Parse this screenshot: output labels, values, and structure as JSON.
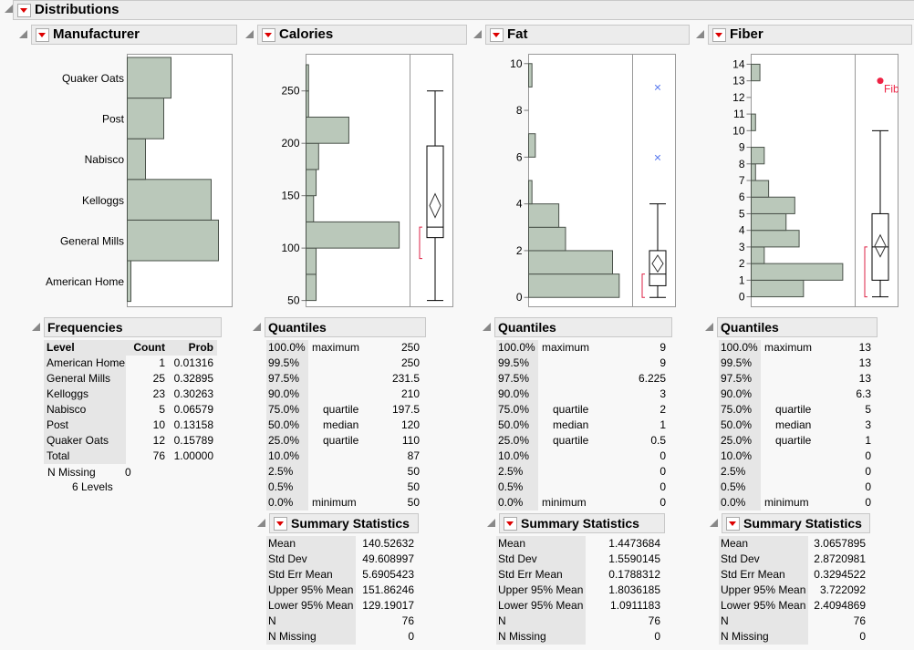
{
  "title": "Distributions",
  "colors": {
    "bar": "#bac8ba",
    "bar_stroke": "#4a524a",
    "outlier_fat": "#5577ee",
    "outlier_fiber": "#ee2244",
    "shortest_half": "#dd2244"
  },
  "manufacturer": {
    "title": "Manufacturer",
    "levels": [
      "American Home",
      "General Mills",
      "Kelloggs",
      "Nabisco",
      "Post",
      "Quaker Oats"
    ],
    "counts": [
      1,
      25,
      23,
      5,
      10,
      12
    ],
    "frequencies": {
      "title": "Frequencies",
      "headers": [
        "Level",
        "Count",
        "Prob"
      ],
      "rows": [
        [
          "American Home",
          "1",
          "0.01316"
        ],
        [
          "General Mills",
          "25",
          "0.32895"
        ],
        [
          "Kelloggs",
          "23",
          "0.30263"
        ],
        [
          "Nabisco",
          "5",
          "0.06579"
        ],
        [
          "Post",
          "10",
          "0.13158"
        ],
        [
          "Quaker Oats",
          "12",
          "0.15789"
        ],
        [
          "Total",
          "76",
          "1.00000"
        ]
      ],
      "n_missing_label": "N Missing",
      "n_missing": "0",
      "levels_text": "6  Levels"
    }
  },
  "vars": [
    {
      "title": "Calories",
      "ticks": [
        50,
        100,
        150,
        200,
        250
      ],
      "range": [
        44,
        285
      ],
      "bins": [
        [
          50,
          75,
          4
        ],
        [
          75,
          100,
          4
        ],
        [
          100,
          125,
          37
        ],
        [
          125,
          150,
          3
        ],
        [
          150,
          175,
          4
        ],
        [
          175,
          200,
          5
        ],
        [
          200,
          225,
          17
        ],
        [
          225,
          250,
          1
        ],
        [
          250,
          275,
          1
        ]
      ],
      "box": {
        "min": 50,
        "q1": 110,
        "median": 120,
        "q3": 197.5,
        "max": 250,
        "mean": 140.52632,
        "lcl": 129.19017,
        "ucl": 151.86246,
        "short_half": [
          90,
          120
        ],
        "outliers": []
      },
      "quantiles": [
        [
          "100.0%",
          "maximum",
          "250"
        ],
        [
          "99.5%",
          "",
          "250"
        ],
        [
          "97.5%",
          "",
          "231.5"
        ],
        [
          "90.0%",
          "",
          "210"
        ],
        [
          "75.0%",
          "quartile",
          "197.5"
        ],
        [
          "50.0%",
          "median",
          "120"
        ],
        [
          "25.0%",
          "quartile",
          "110"
        ],
        [
          "10.0%",
          "",
          "87"
        ],
        [
          "2.5%",
          "",
          "50"
        ],
        [
          "0.5%",
          "",
          "50"
        ],
        [
          "0.0%",
          "minimum",
          "50"
        ]
      ],
      "summary": [
        [
          "Mean",
          "140.52632"
        ],
        [
          "Std Dev",
          "49.608997"
        ],
        [
          "Std Err Mean",
          "5.6905423"
        ],
        [
          "Upper 95% Mean",
          "151.86246"
        ],
        [
          "Lower 95% Mean",
          "129.19017"
        ],
        [
          "N",
          "76"
        ],
        [
          "N Missing",
          "0"
        ]
      ]
    },
    {
      "title": "Fat",
      "ticks": [
        0,
        2,
        4,
        6,
        8,
        10
      ],
      "range": [
        -0.4,
        10.4
      ],
      "bins": [
        [
          0,
          1,
          27
        ],
        [
          1,
          2,
          25
        ],
        [
          2,
          3,
          11
        ],
        [
          3,
          4,
          9
        ],
        [
          4,
          5,
          1
        ],
        [
          5,
          6,
          0
        ],
        [
          6,
          7,
          2
        ],
        [
          7,
          8,
          0
        ],
        [
          8,
          9,
          0
        ],
        [
          9,
          10,
          1
        ]
      ],
      "box": {
        "min": 0,
        "q1": 0.5,
        "median": 1,
        "q3": 2,
        "max": 4,
        "mean": 1.4473684,
        "lcl": 1.0911183,
        "ucl": 1.8036185,
        "short_half": [
          0,
          1
        ],
        "outliers": [
          6,
          9
        ],
        "outlier_style": "x"
      },
      "quantiles": [
        [
          "100.0%",
          "maximum",
          "9"
        ],
        [
          "99.5%",
          "",
          "9"
        ],
        [
          "97.5%",
          "",
          "6.225"
        ],
        [
          "90.0%",
          "",
          "3"
        ],
        [
          "75.0%",
          "quartile",
          "2"
        ],
        [
          "50.0%",
          "median",
          "1"
        ],
        [
          "25.0%",
          "quartile",
          "0.5"
        ],
        [
          "10.0%",
          "",
          "0"
        ],
        [
          "2.5%",
          "",
          "0"
        ],
        [
          "0.5%",
          "",
          "0"
        ],
        [
          "0.0%",
          "minimum",
          "0"
        ]
      ],
      "summary": [
        [
          "Mean",
          "1.4473684"
        ],
        [
          "Std Dev",
          "1.5590145"
        ],
        [
          "Std Err Mean",
          "0.1788312"
        ],
        [
          "Upper 95% Mean",
          "1.8036185"
        ],
        [
          "Lower 95% Mean",
          "1.0911183"
        ],
        [
          "N",
          "76"
        ],
        [
          "N Missing",
          "0"
        ]
      ]
    },
    {
      "title": "Fiber",
      "ticks": [
        0,
        1,
        2,
        3,
        4,
        5,
        6,
        7,
        8,
        9,
        10,
        11,
        12,
        13,
        14
      ],
      "range": [
        -0.6,
        14.6
      ],
      "bins": [
        [
          0,
          1,
          12
        ],
        [
          1,
          2,
          21
        ],
        [
          2,
          3,
          3
        ],
        [
          3,
          4,
          11
        ],
        [
          4,
          5,
          8
        ],
        [
          5,
          6,
          10
        ],
        [
          6,
          7,
          4
        ],
        [
          7,
          8,
          1
        ],
        [
          8,
          9,
          3
        ],
        [
          9,
          10,
          0
        ],
        [
          10,
          11,
          1
        ],
        [
          11,
          12,
          0
        ],
        [
          12,
          13,
          0
        ],
        [
          13,
          14,
          2
        ]
      ],
      "box": {
        "min": 0,
        "q1": 1,
        "median": 3,
        "q3": 5,
        "max": 10,
        "mean": 3.0657895,
        "lcl": 2.4094869,
        "ucl": 3.722092,
        "short_half": [
          0,
          3
        ],
        "outliers": [
          13
        ],
        "outlier_style": "dot",
        "outlier_label": "Fiber"
      },
      "quantiles": [
        [
          "100.0%",
          "maximum",
          "13"
        ],
        [
          "99.5%",
          "",
          "13"
        ],
        [
          "97.5%",
          "",
          "13"
        ],
        [
          "90.0%",
          "",
          "6.3"
        ],
        [
          "75.0%",
          "quartile",
          "5"
        ],
        [
          "50.0%",
          "median",
          "3"
        ],
        [
          "25.0%",
          "quartile",
          "1"
        ],
        [
          "10.0%",
          "",
          "0"
        ],
        [
          "2.5%",
          "",
          "0"
        ],
        [
          "0.5%",
          "",
          "0"
        ],
        [
          "0.0%",
          "minimum",
          "0"
        ]
      ],
      "summary": [
        [
          "Mean",
          "3.0657895"
        ],
        [
          "Std Dev",
          "2.8720981"
        ],
        [
          "Std Err Mean",
          "0.3294522"
        ],
        [
          "Upper 95% Mean",
          "3.722092"
        ],
        [
          "Lower 95% Mean",
          "2.4094869"
        ],
        [
          "N",
          "76"
        ],
        [
          "N Missing",
          "0"
        ]
      ]
    }
  ],
  "labels": {
    "quantiles": "Quantiles",
    "summary": "Summary Statistics"
  }
}
